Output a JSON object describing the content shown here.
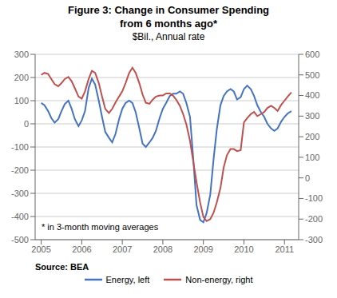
{
  "chart_data": {
    "type": "line",
    "title": [
      "Figure 3: Change in Consumer Spending",
      "from 6 months ago*"
    ],
    "subtitle": "$Bil., Annual rate",
    "annotations": [
      "* in 3-month moving averages",
      "Source: BEA"
    ],
    "x": [
      2005.0,
      2005.08,
      2005.17,
      2005.25,
      2005.33,
      2005.42,
      2005.5,
      2005.58,
      2005.67,
      2005.75,
      2005.83,
      2005.92,
      2006.0,
      2006.08,
      2006.17,
      2006.25,
      2006.33,
      2006.42,
      2006.5,
      2006.58,
      2006.67,
      2006.75,
      2006.83,
      2006.92,
      2007.0,
      2007.08,
      2007.17,
      2007.25,
      2007.33,
      2007.42,
      2007.5,
      2007.58,
      2007.67,
      2007.75,
      2007.83,
      2007.92,
      2008.0,
      2008.08,
      2008.17,
      2008.25,
      2008.33,
      2008.42,
      2008.5,
      2008.58,
      2008.67,
      2008.75,
      2008.83,
      2008.92,
      2009.0,
      2009.08,
      2009.17,
      2009.25,
      2009.33,
      2009.42,
      2009.5,
      2009.58,
      2009.67,
      2009.75,
      2009.83,
      2009.92,
      2010.0,
      2010.08,
      2010.17,
      2010.25,
      2010.33,
      2010.42,
      2010.5,
      2010.58,
      2010.67,
      2010.75,
      2010.83,
      2010.92,
      2011.0,
      2011.08,
      2011.17
    ],
    "series": [
      {
        "name": "Energy, left",
        "color": "#4472C4",
        "values": [
          90,
          80,
          55,
          25,
          5,
          20,
          55,
          85,
          100,
          65,
          20,
          -10,
          15,
          55,
          155,
          195,
          170,
          100,
          30,
          -35,
          -60,
          -80,
          -45,
          20,
          65,
          90,
          100,
          90,
          50,
          -20,
          -85,
          -100,
          -80,
          -60,
          -30,
          25,
          65,
          90,
          120,
          130,
          130,
          140,
          130,
          90,
          30,
          -150,
          -350,
          -415,
          -425,
          -385,
          -305,
          -155,
          -25,
          80,
          120,
          140,
          150,
          140,
          105,
          115,
          150,
          165,
          150,
          120,
          80,
          50,
          30,
          0,
          -20,
          -30,
          -20,
          10,
          30,
          45,
          55
        ]
      },
      {
        "name": "Non-energy, right",
        "color": "#C0504D",
        "axis": "y2",
        "values": [
          500,
          510,
          505,
          480,
          455,
          445,
          460,
          480,
          490,
          470,
          435,
          395,
          385,
          420,
          480,
          520,
          510,
          460,
          395,
          335,
          315,
          335,
          365,
          395,
          420,
          460,
          510,
          535,
          510,
          460,
          405,
          365,
          360,
          380,
          395,
          400,
          400,
          410,
          410,
          400,
          380,
          350,
          310,
          260,
          180,
          80,
          -20,
          -120,
          -190,
          -210,
          -200,
          -170,
          -120,
          -50,
          50,
          110,
          140,
          140,
          130,
          135,
          270,
          290,
          310,
          320,
          300,
          310,
          320,
          340,
          350,
          340,
          325,
          355,
          375,
          395,
          415
        ]
      }
    ],
    "xlim": [
      2004.85,
      2011.35
    ],
    "xticks": [
      2005,
      2006,
      2007,
      2008,
      2009,
      2010,
      2011
    ],
    "ylim": [
      -500,
      300
    ],
    "yticks": [
      -500,
      -400,
      -300,
      -200,
      -100,
      0,
      100,
      200,
      300
    ],
    "y2lim": [
      -300,
      600
    ],
    "y2ticks": [
      -300,
      -200,
      -100,
      0,
      100,
      200,
      300,
      400,
      500,
      600
    ],
    "grid": true,
    "legend": "bottom"
  }
}
